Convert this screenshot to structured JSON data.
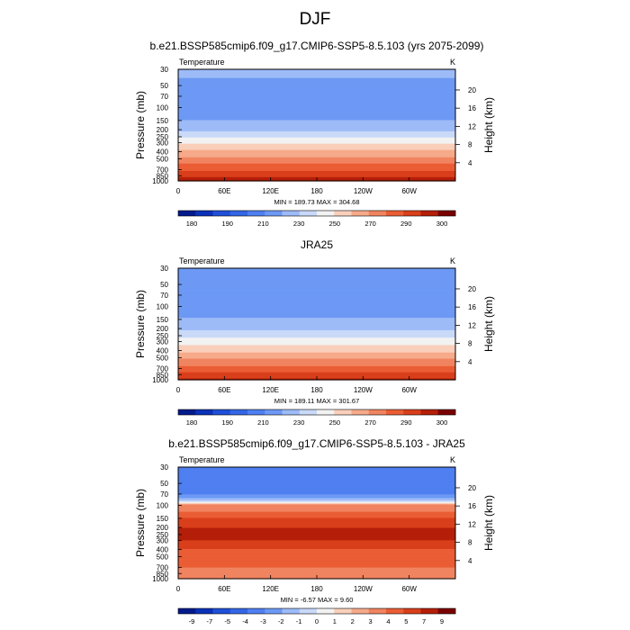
{
  "figure": {
    "title": "DJF",
    "panel_titles": [
      "b.e21.BSSP585cmip6.f09_g17.CMIP6-SSP5-8.5.103 (yrs 2075-2099)",
      "JRA25",
      "b.e21.BSSP585cmip6.f09_g17.CMIP6-SSP5-8.5.103 - JRA25"
    ]
  },
  "chart_data": [
    {
      "type": "heatmap",
      "variable_label": "Temperature",
      "units": "K",
      "xlabel": "",
      "ylabel": "Pressure (mb)",
      "ylabel_right": "Height (km)",
      "x_ticks": [
        "0",
        "60E",
        "120E",
        "180",
        "120W",
        "60W"
      ],
      "y_ticks_left": [
        "30",
        "50",
        "70",
        "100",
        "150",
        "200",
        "250",
        "300",
        "400",
        "500",
        "700",
        "850",
        "1000"
      ],
      "y_ticks_right": [
        "20",
        "16",
        "12",
        "8",
        "4"
      ],
      "y_scale": "log",
      "ylim": [
        1000,
        30
      ],
      "stats": "MIN = 189.73  MAX = 304.68",
      "levels": [
        175,
        180,
        185,
        190,
        200,
        210,
        220,
        230,
        240,
        250,
        260,
        270,
        280,
        290,
        300
      ],
      "colorbar_labels": [
        "180",
        "190",
        "210",
        "230",
        "250",
        "270",
        "290",
        "300"
      ],
      "colors": [
        "#021a8c",
        "#0a31b8",
        "#1f4fd8",
        "#3366e6",
        "#4f7ff0",
        "#6d99f5",
        "#9dbbf7",
        "#c9d9f8",
        "#f2f2f2",
        "#f9cfbb",
        "#f6aa8a",
        "#f18460",
        "#ea5d35",
        "#d93f1a",
        "#b51e08",
        "#7a0000"
      ],
      "profile": [
        {
          "p": 30,
          "t": 212
        },
        {
          "p": 50,
          "t": 208
        },
        {
          "p": 70,
          "t": 202
        },
        {
          "p": 100,
          "t": 203
        },
        {
          "p": 150,
          "t": 210
        },
        {
          "p": 200,
          "t": 218
        },
        {
          "p": 250,
          "t": 228
        },
        {
          "p": 300,
          "t": 238
        },
        {
          "p": 400,
          "t": 252
        },
        {
          "p": 500,
          "t": 263
        },
        {
          "p": 700,
          "t": 278
        },
        {
          "p": 850,
          "t": 288
        },
        {
          "p": 1000,
          "t": 296
        }
      ]
    },
    {
      "type": "heatmap",
      "variable_label": "Temperature",
      "units": "K",
      "xlabel": "",
      "ylabel": "Pressure (mb)",
      "ylabel_right": "Height (km)",
      "x_ticks": [
        "0",
        "60E",
        "120E",
        "180",
        "120W",
        "60W"
      ],
      "y_ticks_left": [
        "30",
        "50",
        "70",
        "100",
        "150",
        "200",
        "250",
        "300",
        "400",
        "500",
        "700",
        "850",
        "1000"
      ],
      "y_ticks_right": [
        "20",
        "16",
        "12",
        "8",
        "4"
      ],
      "y_scale": "log",
      "ylim": [
        1000,
        30
      ],
      "stats": "MIN = 189.11  MAX = 301.67",
      "levels": [
        175,
        180,
        185,
        190,
        200,
        210,
        220,
        230,
        240,
        250,
        260,
        270,
        280,
        290,
        300
      ],
      "colorbar_labels": [
        "180",
        "190",
        "210",
        "230",
        "250",
        "270",
        "290",
        "300"
      ],
      "colors": [
        "#021a8c",
        "#0a31b8",
        "#1f4fd8",
        "#3366e6",
        "#4f7ff0",
        "#6d99f5",
        "#9dbbf7",
        "#c9d9f8",
        "#f2f2f2",
        "#f9cfbb",
        "#f6aa8a",
        "#f18460",
        "#ea5d35",
        "#d93f1a",
        "#b51e08",
        "#7a0000"
      ],
      "profile": [
        {
          "p": 30,
          "t": 210
        },
        {
          "p": 50,
          "t": 207
        },
        {
          "p": 70,
          "t": 203
        },
        {
          "p": 100,
          "t": 203
        },
        {
          "p": 150,
          "t": 211
        },
        {
          "p": 200,
          "t": 218
        },
        {
          "p": 250,
          "t": 226
        },
        {
          "p": 300,
          "t": 235
        },
        {
          "p": 400,
          "t": 248
        },
        {
          "p": 500,
          "t": 258
        },
        {
          "p": 700,
          "t": 273
        },
        {
          "p": 850,
          "t": 283
        },
        {
          "p": 1000,
          "t": 291
        }
      ]
    },
    {
      "type": "heatmap",
      "variable_label": "Temperature",
      "units": "K",
      "xlabel": "",
      "ylabel": "Pressure (mb)",
      "ylabel_right": "Height (km)",
      "x_ticks": [
        "0",
        "60E",
        "120E",
        "180",
        "120W",
        "60W"
      ],
      "y_ticks_left": [
        "30",
        "50",
        "70",
        "100",
        "150",
        "200",
        "250",
        "300",
        "400",
        "500",
        "700",
        "850",
        "1000"
      ],
      "y_ticks_right": [
        "20",
        "16",
        "12",
        "8",
        "4"
      ],
      "y_scale": "log",
      "ylim": [
        1000,
        30
      ],
      "stats": "MIN =  -6.57  MAX =  9.60",
      "levels": [
        -10,
        -9,
        -8,
        -7,
        -6,
        -5,
        -4,
        -3,
        -2,
        -1,
        0,
        1,
        2,
        3,
        4,
        5,
        6,
        7,
        8,
        9
      ],
      "colorbar_labels": [
        "-9",
        "-7",
        "-5",
        "-4",
        "-3",
        "-2",
        "-1",
        "0",
        "1",
        "2",
        "3",
        "4",
        "5",
        "7",
        "9"
      ],
      "colors": [
        "#021a8c",
        "#0a31b8",
        "#1f4fd8",
        "#3366e6",
        "#4f7ff0",
        "#6d99f5",
        "#9dbbf7",
        "#c9d9f8",
        "#f2f2f2",
        "#f9cfbb",
        "#f6aa8a",
        "#f18460",
        "#ea5d35",
        "#d93f1a",
        "#b51e08",
        "#7a0000"
      ],
      "profile": [
        {
          "p": 30,
          "t": -6
        },
        {
          "p": 50,
          "t": -6
        },
        {
          "p": 70,
          "t": -5
        },
        {
          "p": 90,
          "t": -1
        },
        {
          "p": 100,
          "t": 4
        },
        {
          "p": 150,
          "t": 6
        },
        {
          "p": 200,
          "t": 7
        },
        {
          "p": 250,
          "t": 7
        },
        {
          "p": 300,
          "t": 7
        },
        {
          "p": 400,
          "t": 6
        },
        {
          "p": 500,
          "t": 5
        },
        {
          "p": 700,
          "t": 5
        },
        {
          "p": 850,
          "t": 4
        },
        {
          "p": 1000,
          "t": 5
        }
      ]
    }
  ]
}
